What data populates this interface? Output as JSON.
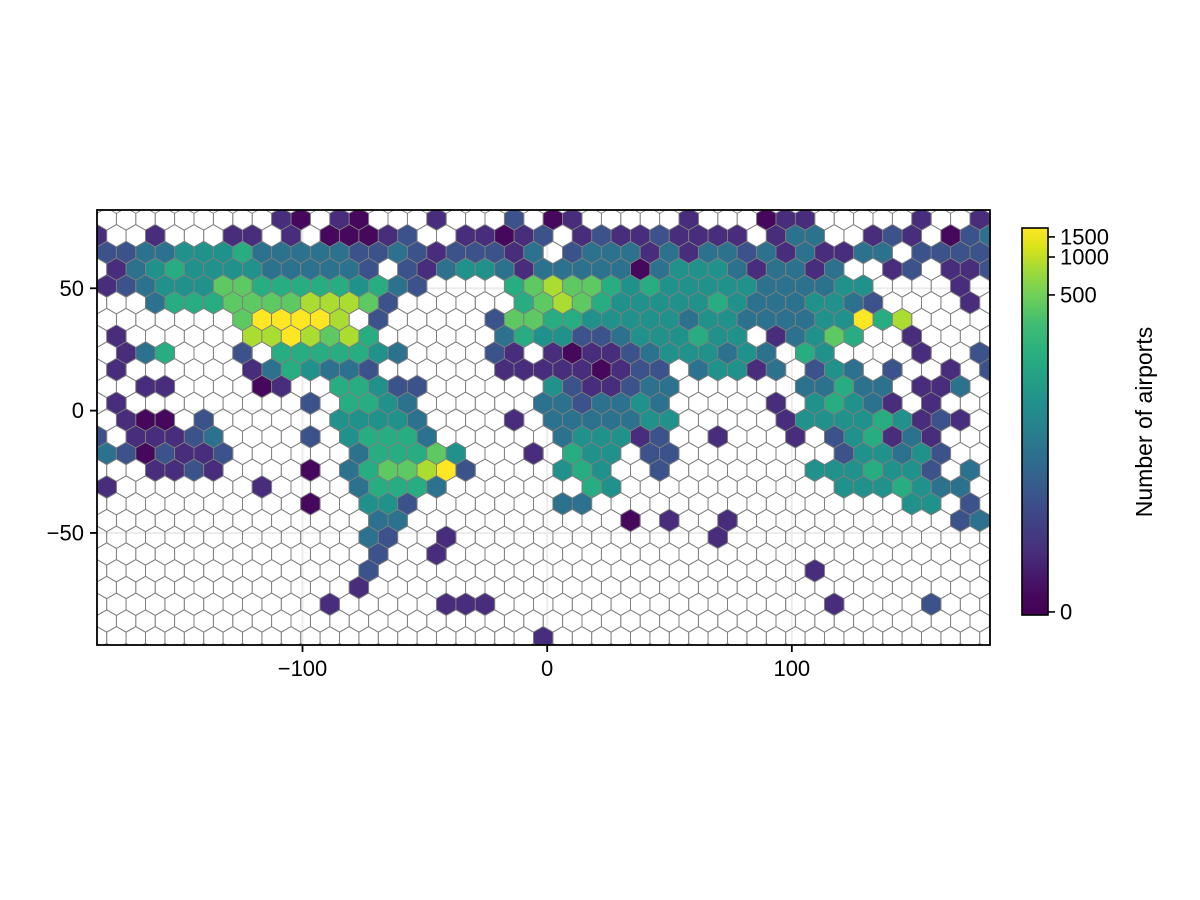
{
  "chart_data": {
    "type": "hexbin",
    "title": "",
    "xlabel": "",
    "ylabel": "",
    "x_axis": {
      "range": [
        -184,
        181
      ],
      "ticks": [
        {
          "value": -100,
          "label": "−100"
        },
        {
          "value": 0,
          "label": "0"
        },
        {
          "value": 100,
          "label": "100"
        }
      ]
    },
    "y_axis": {
      "range": [
        -95.8,
        82
      ],
      "ticks": [
        {
          "value": 50,
          "label": "50"
        },
        {
          "value": 0,
          "label": "0"
        },
        {
          "value": -50,
          "label": "−50"
        }
      ]
    },
    "grid_on": true,
    "colorbar": {
      "label": "Number of airports",
      "ticks": [
        {
          "label": "1500",
          "frac_from_top": 0.023
        },
        {
          "label": "1000",
          "frac_from_top": 0.075
        },
        {
          "label": "500",
          "frac_from_top": 0.173
        },
        {
          "label": "0",
          "frac_from_top": 0.992
        }
      ],
      "gradient": [
        {
          "frac": 0.0,
          "color": "#fde725"
        },
        {
          "frac": 0.05,
          "color": "#d8e219"
        },
        {
          "frac": 0.11,
          "color": "#a0da39"
        },
        {
          "frac": 0.17,
          "color": "#73d056"
        },
        {
          "frac": 0.25,
          "color": "#3fbc73"
        },
        {
          "frac": 0.33,
          "color": "#28ae80"
        },
        {
          "frac": 0.45,
          "color": "#21918c"
        },
        {
          "frac": 0.58,
          "color": "#2c728e"
        },
        {
          "frac": 0.7,
          "color": "#3b528b"
        },
        {
          "frac": 0.84,
          "color": "#472d7b"
        },
        {
          "frac": 0.95,
          "color": "#46085c"
        },
        {
          "frac": 1.0,
          "color": "#440154"
        }
      ]
    },
    "hex_levels": {
      "palette": {
        "1": "#46085c",
        "2": "#472d7b",
        "3": "#3b528b",
        "4": "#2c728e",
        "5": "#21918c",
        "6": "#27ad81",
        "7": "#5ec962",
        "8": "#aadc32",
        "9": "#fde725"
      },
      "level_approx_airports": {
        ".": 0,
        "1": 3,
        "2": 10,
        "3": 35,
        "4": 90,
        "5": 180,
        "6": 330,
        "7": 560,
        "8": 900,
        "9": 1500
      },
      "empty_fill": "none",
      "stroke": "#7f7f7f",
      "rows": [
        ".........21.21...2...3.12.....2...122.....2..2.",
        "2..2...22.2.11123..22123.232232222.244..232.134",
        "33445556444443343233324.34442424434242244.33333",
        ".24565555444443.32455424444414555424424..23.223",
        "23455577666665643....6787765655555444455....2..",
        "...4666777788873......6787655555654445543....2.",
        ".......799998.3.....3776655555455444455968.....",
        ".2......8898786......4655334555655.24576..2....",
        ".246...3.6666654....32.212234555454.65....2..3.",
        ".2......2465443......222221233.45524.354.3..2.3",
        "..22....12..66533......5322344......44644.224..",
        ".2.........3.6654......4434454.....2.56542.2...",
        ".211.3......55554....2.4444455.....2555565232..",
        "3.22234....3.56664......455523..2...2.356242...",
        "4313223......466675...2.655.33........355453..3",
        "...2232....1.4677893....565..3.......5556553.4.",
        "2.......2....46664.......65...........5556544..",
        "...........1..553.......44................55.3.",
        "..............44...........1.2..2...........34.",
        "..............43..2.............2..............",
        "..............3..2.............................",
        "..............3......................2.........",
        ".............2.................................",
        "............2.....222.................2....3...",
        "...............................................",
        ".......................2......................."
      ]
    }
  }
}
